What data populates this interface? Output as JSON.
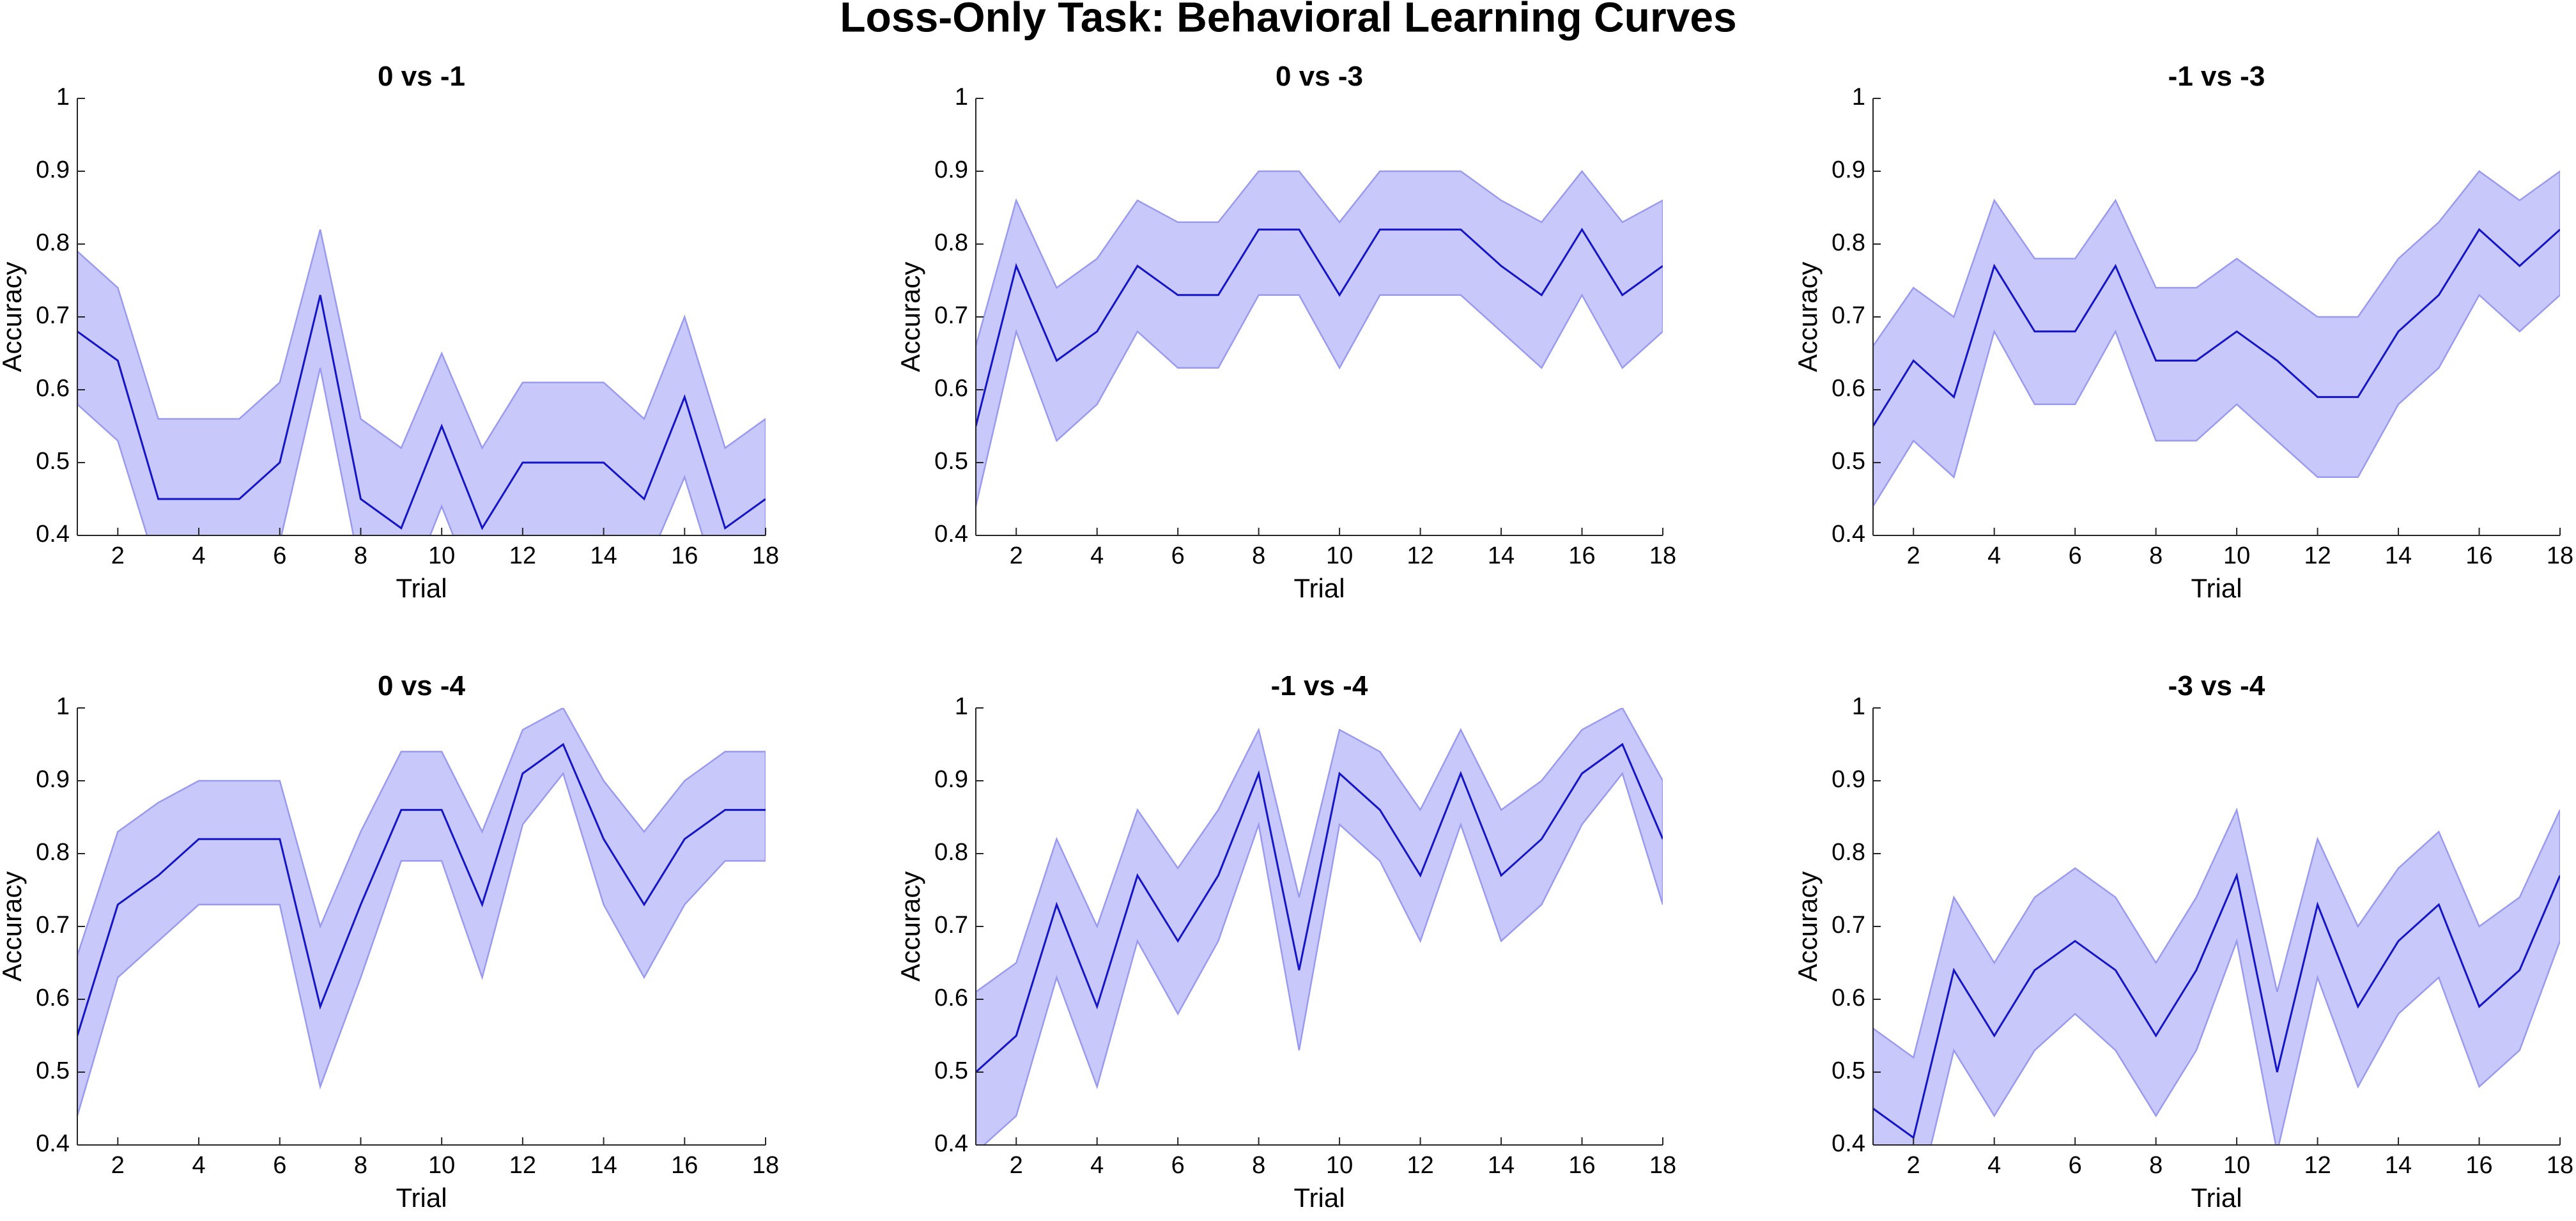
{
  "title": "Loss-Only Task: Behavioral Learning Curves",
  "chart_data": [
    {
      "type": "line",
      "title": "0 vs -1",
      "xlabel": "Trial",
      "ylabel": "Accuracy",
      "x": [
        1,
        2,
        3,
        4,
        5,
        6,
        7,
        8,
        9,
        10,
        11,
        12,
        13,
        14,
        15,
        16,
        17,
        18
      ],
      "values": [
        0.68,
        0.64,
        0.45,
        0.45,
        0.45,
        0.5,
        0.73,
        0.45,
        0.41,
        0.55,
        0.41,
        0.5,
        0.5,
        0.5,
        0.45,
        0.59,
        0.41,
        0.45
      ],
      "upper": [
        0.79,
        0.74,
        0.56,
        0.56,
        0.56,
        0.61,
        0.82,
        0.56,
        0.52,
        0.65,
        0.52,
        0.61,
        0.61,
        0.61,
        0.56,
        0.7,
        0.52,
        0.56
      ],
      "lower": [
        0.58,
        0.53,
        0.35,
        0.35,
        0.35,
        0.39,
        0.63,
        0.35,
        0.3,
        0.44,
        0.3,
        0.39,
        0.39,
        0.39,
        0.35,
        0.48,
        0.3,
        0.35
      ],
      "color": "#1414c8",
      "band_color": "#c8c8fa",
      "band_edge_color": "#9a9af0",
      "xlim": [
        1,
        18
      ],
      "ylim": [
        0.4,
        1
      ],
      "xticks": [
        2,
        4,
        6,
        8,
        10,
        12,
        14,
        16,
        18
      ],
      "yticks": [
        0.4,
        0.5,
        0.6,
        0.7,
        0.8,
        0.9,
        1
      ]
    },
    {
      "type": "line",
      "title": "0 vs -3",
      "xlabel": "Trial",
      "ylabel": "Accuracy",
      "x": [
        1,
        2,
        3,
        4,
        5,
        6,
        7,
        8,
        9,
        10,
        11,
        12,
        13,
        14,
        15,
        16,
        17,
        18
      ],
      "values": [
        0.55,
        0.77,
        0.64,
        0.68,
        0.77,
        0.73,
        0.73,
        0.82,
        0.82,
        0.73,
        0.82,
        0.82,
        0.82,
        0.77,
        0.73,
        0.82,
        0.73,
        0.77
      ],
      "upper": [
        0.66,
        0.86,
        0.74,
        0.78,
        0.86,
        0.83,
        0.83,
        0.9,
        0.9,
        0.83,
        0.9,
        0.9,
        0.9,
        0.86,
        0.83,
        0.9,
        0.83,
        0.86
      ],
      "lower": [
        0.44,
        0.68,
        0.53,
        0.58,
        0.68,
        0.63,
        0.63,
        0.73,
        0.73,
        0.63,
        0.73,
        0.73,
        0.73,
        0.68,
        0.63,
        0.73,
        0.63,
        0.68
      ],
      "color": "#1414c8",
      "band_color": "#c8c8fa",
      "band_edge_color": "#9a9af0",
      "xlim": [
        1,
        18
      ],
      "ylim": [
        0.4,
        1
      ],
      "xticks": [
        2,
        4,
        6,
        8,
        10,
        12,
        14,
        16,
        18
      ],
      "yticks": [
        0.4,
        0.5,
        0.6,
        0.7,
        0.8,
        0.9,
        1
      ]
    },
    {
      "type": "line",
      "title": "-1 vs -3",
      "xlabel": "Trial",
      "ylabel": "Accuracy",
      "x": [
        1,
        2,
        3,
        4,
        5,
        6,
        7,
        8,
        9,
        10,
        11,
        12,
        13,
        14,
        15,
        16,
        17,
        18
      ],
      "values": [
        0.55,
        0.64,
        0.59,
        0.77,
        0.68,
        0.68,
        0.77,
        0.64,
        0.64,
        0.68,
        0.64,
        0.59,
        0.59,
        0.68,
        0.73,
        0.82,
        0.77,
        0.82
      ],
      "upper": [
        0.66,
        0.74,
        0.7,
        0.86,
        0.78,
        0.78,
        0.86,
        0.74,
        0.74,
        0.78,
        0.74,
        0.7,
        0.7,
        0.78,
        0.83,
        0.9,
        0.86,
        0.9
      ],
      "lower": [
        0.44,
        0.53,
        0.48,
        0.68,
        0.58,
        0.58,
        0.68,
        0.53,
        0.53,
        0.58,
        0.53,
        0.48,
        0.48,
        0.58,
        0.63,
        0.73,
        0.68,
        0.73
      ],
      "color": "#1414c8",
      "band_color": "#c8c8fa",
      "band_edge_color": "#9a9af0",
      "xlim": [
        1,
        18
      ],
      "ylim": [
        0.4,
        1
      ],
      "xticks": [
        2,
        4,
        6,
        8,
        10,
        12,
        14,
        16,
        18
      ],
      "yticks": [
        0.4,
        0.5,
        0.6,
        0.7,
        0.8,
        0.9,
        1
      ]
    },
    {
      "type": "line",
      "title": "0 vs -4",
      "xlabel": "Trial",
      "ylabel": "Accuracy",
      "x": [
        1,
        2,
        3,
        4,
        5,
        6,
        7,
        8,
        9,
        10,
        11,
        12,
        13,
        14,
        15,
        16,
        17,
        18
      ],
      "values": [
        0.55,
        0.73,
        0.77,
        0.82,
        0.82,
        0.82,
        0.59,
        0.73,
        0.86,
        0.86,
        0.73,
        0.91,
        0.95,
        0.82,
        0.73,
        0.82,
        0.86,
        0.86
      ],
      "upper": [
        0.66,
        0.83,
        0.87,
        0.9,
        0.9,
        0.9,
        0.7,
        0.83,
        0.94,
        0.94,
        0.83,
        0.97,
        1.0,
        0.9,
        0.83,
        0.9,
        0.94,
        0.94
      ],
      "lower": [
        0.44,
        0.63,
        0.68,
        0.73,
        0.73,
        0.73,
        0.48,
        0.63,
        0.79,
        0.79,
        0.63,
        0.84,
        0.91,
        0.73,
        0.63,
        0.73,
        0.79,
        0.79
      ],
      "color": "#1414c8",
      "band_color": "#c8c8fa",
      "band_edge_color": "#9a9af0",
      "xlim": [
        1,
        18
      ],
      "ylim": [
        0.4,
        1
      ],
      "xticks": [
        2,
        4,
        6,
        8,
        10,
        12,
        14,
        16,
        18
      ],
      "yticks": [
        0.4,
        0.5,
        0.6,
        0.7,
        0.8,
        0.9,
        1
      ]
    },
    {
      "type": "line",
      "title": "-1 vs -4",
      "xlabel": "Trial",
      "ylabel": "Accuracy",
      "x": [
        1,
        2,
        3,
        4,
        5,
        6,
        7,
        8,
        9,
        10,
        11,
        12,
        13,
        14,
        15,
        16,
        17,
        18
      ],
      "values": [
        0.5,
        0.55,
        0.73,
        0.59,
        0.77,
        0.68,
        0.77,
        0.91,
        0.64,
        0.91,
        0.86,
        0.77,
        0.91,
        0.77,
        0.82,
        0.91,
        0.95,
        0.82
      ],
      "upper": [
        0.61,
        0.65,
        0.82,
        0.7,
        0.86,
        0.78,
        0.86,
        0.97,
        0.74,
        0.97,
        0.94,
        0.86,
        0.97,
        0.86,
        0.9,
        0.97,
        1.0,
        0.9
      ],
      "lower": [
        0.39,
        0.44,
        0.63,
        0.48,
        0.68,
        0.58,
        0.68,
        0.84,
        0.53,
        0.84,
        0.79,
        0.68,
        0.84,
        0.68,
        0.73,
        0.84,
        0.91,
        0.73
      ],
      "color": "#1414c8",
      "band_color": "#c8c8fa",
      "band_edge_color": "#9a9af0",
      "xlim": [
        1,
        18
      ],
      "ylim": [
        0.4,
        1
      ],
      "xticks": [
        2,
        4,
        6,
        8,
        10,
        12,
        14,
        16,
        18
      ],
      "yticks": [
        0.4,
        0.5,
        0.6,
        0.7,
        0.8,
        0.9,
        1
      ]
    },
    {
      "type": "line",
      "title": "-3 vs -4",
      "xlabel": "Trial",
      "ylabel": "Accuracy",
      "x": [
        1,
        2,
        3,
        4,
        5,
        6,
        7,
        8,
        9,
        10,
        11,
        12,
        13,
        14,
        15,
        16,
        17,
        18
      ],
      "values": [
        0.45,
        0.41,
        0.64,
        0.55,
        0.64,
        0.68,
        0.64,
        0.55,
        0.64,
        0.77,
        0.5,
        0.73,
        0.59,
        0.68,
        0.73,
        0.59,
        0.64,
        0.77
      ],
      "upper": [
        0.56,
        0.52,
        0.74,
        0.65,
        0.74,
        0.78,
        0.74,
        0.65,
        0.74,
        0.86,
        0.61,
        0.82,
        0.7,
        0.78,
        0.83,
        0.7,
        0.74,
        0.86
      ],
      "lower": [
        0.35,
        0.3,
        0.53,
        0.44,
        0.53,
        0.58,
        0.53,
        0.44,
        0.53,
        0.68,
        0.39,
        0.63,
        0.48,
        0.58,
        0.63,
        0.48,
        0.53,
        0.68
      ],
      "color": "#1414c8",
      "band_color": "#c8c8fa",
      "band_edge_color": "#9a9af0",
      "xlim": [
        1,
        18
      ],
      "ylim": [
        0.4,
        1
      ],
      "xticks": [
        2,
        4,
        6,
        8,
        10,
        12,
        14,
        16,
        18
      ],
      "yticks": [
        0.4,
        0.5,
        0.6,
        0.7,
        0.8,
        0.9,
        1
      ]
    }
  ]
}
